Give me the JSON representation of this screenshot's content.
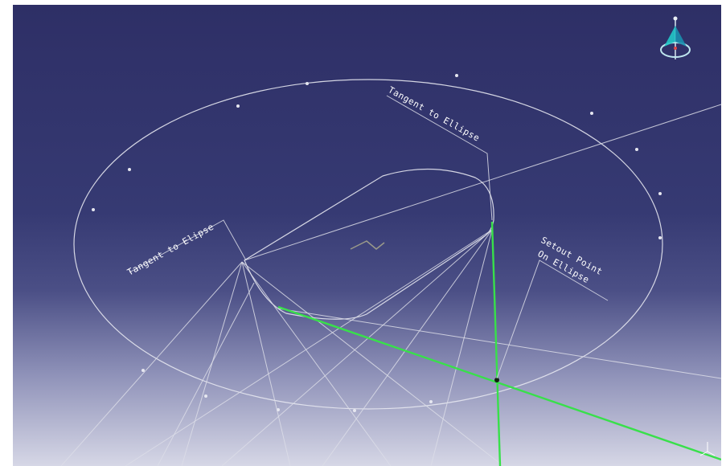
{
  "viewport": {
    "annotations": [
      {
        "id": "tangent-top",
        "text": "Tangent to Ellipse"
      },
      {
        "id": "tangent-left",
        "text": "Tangent to Elipse"
      },
      {
        "id": "setout-line1",
        "text": "Setout Point"
      },
      {
        "id": "setout-line2",
        "text": "On Ellipse"
      }
    ]
  },
  "icons": {
    "compass": "compass-icon",
    "axis": "axis-triad-icon",
    "center": "center-mark-icon"
  },
  "colors": {
    "background_top": "#2e2f66",
    "background_bottom": "#d6d7e6",
    "geometry": "#e6e7f0",
    "highlight": "#38e04a"
  }
}
